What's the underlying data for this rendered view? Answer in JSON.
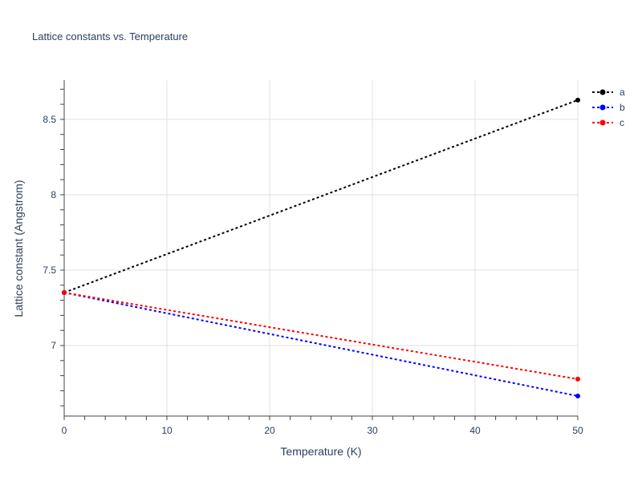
{
  "chart_data": {
    "type": "line",
    "title": "Lattice constants vs. Temperature",
    "xlabel": "Temperature (K)",
    "ylabel": "Lattice constant (Angstrom)",
    "xlim": [
      0,
      50
    ],
    "ylim": [
      6.532,
      8.76
    ],
    "xticks": [
      0,
      10,
      20,
      30,
      40,
      50
    ],
    "xtick_labels": [
      "0",
      "10",
      "20",
      "30",
      "40",
      "50"
    ],
    "yticks": [
      7,
      7.5,
      8,
      8.5
    ],
    "ytick_labels": [
      "7",
      "7.5",
      "8",
      "8.5"
    ],
    "grid": true,
    "legend_placement": "top-right",
    "series": [
      {
        "name": "a",
        "color": "#000000",
        "x": [
          0,
          50
        ],
        "y": [
          7.351,
          8.628
        ]
      },
      {
        "name": "b",
        "color": "#0000ff",
        "x": [
          0,
          50
        ],
        "y": [
          7.351,
          6.665
        ]
      },
      {
        "name": "c",
        "color": "#ff0000",
        "x": [
          0,
          50
        ],
        "y": [
          7.351,
          6.777
        ]
      }
    ]
  }
}
